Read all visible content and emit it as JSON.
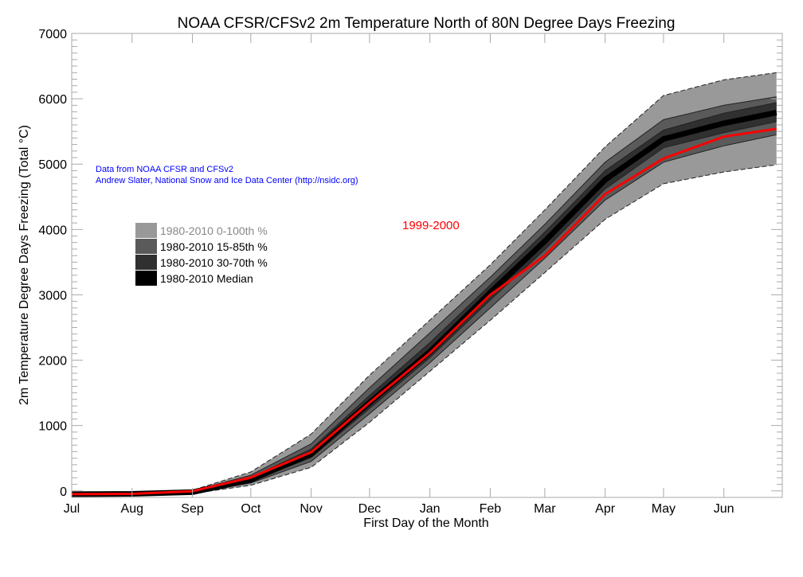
{
  "chart_data": {
    "type": "area",
    "title": "NOAA CFSR/CFSv2 2m Temperature North of 80N Degree Days Freezing",
    "xlabel": "First Day of the Month",
    "ylabel": "2m Temperature Degree Days Freezing (Total °C)",
    "x_ticks": [
      "Jul",
      "Aug",
      "Sep",
      "Oct",
      "Nov",
      "Dec",
      "Jan",
      "Feb",
      "Mar",
      "Apr",
      "May",
      "Jun"
    ],
    "x_tick_days": [
      0,
      31,
      62,
      92,
      123,
      153,
      184,
      215,
      243,
      274,
      304,
      335
    ],
    "xlim_days": [
      0,
      365
    ],
    "ylim": [
      -100,
      7000
    ],
    "y_ticks": [
      0,
      1000,
      2000,
      3000,
      4000,
      5000,
      6000,
      7000
    ],
    "grid": false,
    "x_days": [
      0,
      31,
      62,
      92,
      123,
      153,
      184,
      215,
      243,
      274,
      304,
      335,
      362
    ],
    "bands": [
      {
        "name": "1980-2010 0-100th %",
        "color": "#999999",
        "lower": [
          -55,
          -50,
          -40,
          85,
          360,
          1050,
          1830,
          2610,
          3340,
          4155,
          4700,
          4880,
          4990
        ],
        "upper": [
          -45,
          -35,
          10,
          290,
          870,
          1770,
          2615,
          3460,
          4300,
          5265,
          6050,
          6290,
          6400
        ]
      },
      {
        "name": "1980-2010 15-85th %",
        "color": "#5a5a5a",
        "lower": [
          -53,
          -48,
          -30,
          120,
          450,
          1180,
          1960,
          2800,
          3560,
          4450,
          5030,
          5280,
          5450
        ],
        "upper": [
          -47,
          -40,
          0,
          240,
          720,
          1580,
          2420,
          3270,
          4080,
          5030,
          5680,
          5900,
          6030
        ]
      },
      {
        "name": "1980-2010 30-70th %",
        "color": "#303030",
        "lower": [
          -52,
          -47,
          -25,
          145,
          510,
          1260,
          2040,
          2920,
          3690,
          4620,
          5250,
          5480,
          5650
        ],
        "upper": [
          -48,
          -42,
          -10,
          205,
          640,
          1460,
          2270,
          3150,
          3960,
          4900,
          5520,
          5780,
          5940
        ]
      }
    ],
    "median": {
      "name": "1980-2010 Median",
      "color": "#000000",
      "values": [
        -50,
        -45,
        -20,
        170,
        565,
        1350,
        2130,
        3035,
        3820,
        4760,
        5385,
        5625,
        5790
      ]
    },
    "series": [
      {
        "name": "1999-2000",
        "color": "#ff0000",
        "values": [
          -50,
          -45,
          -5,
          205,
          590,
          1350,
          2110,
          3000,
          3600,
          4540,
          5085,
          5420,
          5540
        ]
      }
    ],
    "legend_placement": "left",
    "annotations": [
      "Data from NOAA CFSR and CFSv2",
      "Andrew Slater, National Snow and Ice Data Center (http://nsidc.org)"
    ],
    "annotation_color": "#0000ff"
  }
}
